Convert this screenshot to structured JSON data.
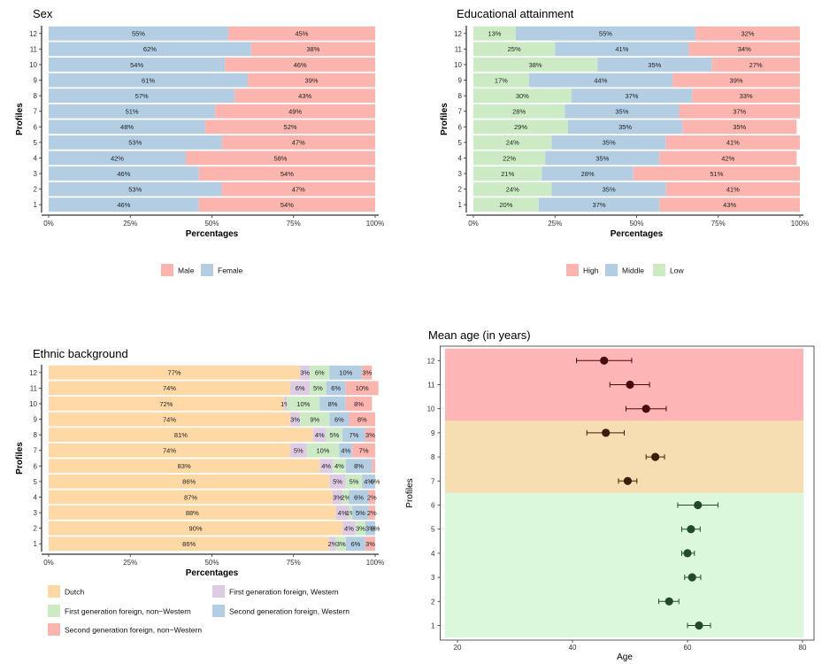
{
  "chart_data": [
    {
      "type": "bar",
      "title": "Sex",
      "xlabel": "Percentages",
      "ylabel": "Profiles",
      "orientation": "horizontal",
      "stacked": true,
      "categories": [
        "1",
        "2",
        "3",
        "4",
        "5",
        "6",
        "7",
        "8",
        "9",
        "10",
        "11",
        "12"
      ],
      "x_ticks": [
        "0%",
        "25%",
        "50%",
        "75%",
        "100%"
      ],
      "xlim": [
        0,
        100
      ],
      "legend_position": "bottom",
      "series": [
        {
          "name": "Female",
          "color": "#b3cde3",
          "values": [
            46,
            53,
            46,
            42,
            53,
            48,
            51,
            57,
            61,
            54,
            62,
            55
          ]
        },
        {
          "name": "Male",
          "color": "#fbb4ae",
          "values": [
            54,
            47,
            54,
            58,
            47,
            52,
            49,
            43,
            39,
            46,
            38,
            45
          ]
        }
      ],
      "legend": [
        {
          "name": "Male",
          "color": "#fbb4ae"
        },
        {
          "name": "Female",
          "color": "#b3cde3"
        }
      ]
    },
    {
      "type": "bar",
      "title": "Educational attainment",
      "xlabel": "Percentages",
      "ylabel": "Profiles",
      "orientation": "horizontal",
      "stacked": true,
      "categories": [
        "1",
        "2",
        "3",
        "4",
        "5",
        "6",
        "7",
        "8",
        "9",
        "10",
        "11",
        "12"
      ],
      "x_ticks": [
        "0%",
        "25%",
        "50%",
        "75%",
        "100%"
      ],
      "xlim": [
        0,
        100
      ],
      "legend_position": "bottom",
      "series": [
        {
          "name": "Low",
          "color": "#ccebc5",
          "values": [
            20,
            24,
            21,
            22,
            24,
            29,
            28,
            30,
            17,
            38,
            25,
            13
          ]
        },
        {
          "name": "Middle",
          "color": "#b3cde3",
          "values": [
            37,
            35,
            28,
            35,
            35,
            35,
            35,
            37,
            44,
            35,
            41,
            55
          ]
        },
        {
          "name": "High",
          "color": "#fbb4ae",
          "values": [
            43,
            41,
            51,
            42,
            41,
            35,
            37,
            33,
            39,
            27,
            34,
            32
          ]
        }
      ],
      "legend": [
        {
          "name": "High",
          "color": "#fbb4ae"
        },
        {
          "name": "Middle",
          "color": "#b3cde3"
        },
        {
          "name": "Low",
          "color": "#ccebc5"
        }
      ]
    },
    {
      "type": "bar",
      "title": "Ethnic background",
      "xlabel": "Percentages",
      "ylabel": "Profiles",
      "orientation": "horizontal",
      "stacked": true,
      "categories": [
        "1",
        "2",
        "3",
        "4",
        "5",
        "6",
        "7",
        "8",
        "9",
        "10",
        "11",
        "12"
      ],
      "x_ticks": [
        "0%",
        "25%",
        "50%",
        "75%",
        "100%"
      ],
      "xlim": [
        0,
        100
      ],
      "legend_position": "bottom",
      "series": [
        {
          "name": "Dutch",
          "color": "#fed9a6",
          "values": [
            86,
            90,
            88,
            87,
            86,
            83,
            74,
            81,
            74,
            72,
            74,
            77
          ]
        },
        {
          "name": "First generation foreign, Western",
          "color": "#decbe4",
          "values": [
            2,
            4,
            4,
            3,
            5,
            4,
            5,
            4,
            3,
            1,
            6,
            3
          ]
        },
        {
          "name": "First generation foreign, non−Western",
          "color": "#ccebc5",
          "values": [
            3,
            3,
            1,
            2,
            5,
            4,
            10,
            5,
            9,
            10,
            5,
            6
          ]
        },
        {
          "name": "Second generation foreign, Western",
          "color": "#b3cde3",
          "values": [
            6,
            3,
            5,
            6,
            4,
            8,
            4,
            7,
            6,
            8,
            6,
            10
          ]
        },
        {
          "name": "Second generation foreign, non−Western",
          "color": "#fbb4ae",
          "values": [
            3,
            0,
            2,
            2,
            0,
            1,
            7,
            3,
            8,
            8,
            10,
            3
          ]
        }
      ],
      "labels": [
        [
          "86%",
          "2%",
          "3%",
          "6%",
          "3%"
        ],
        [
          "90%",
          "4%",
          "3%",
          "3%",
          "0%"
        ],
        [
          "88%",
          "4%",
          "1%",
          "5%",
          "2%"
        ],
        [
          "87%",
          "3%",
          "2%",
          "6%",
          "2%"
        ],
        [
          "86%",
          "5%",
          "5%",
          "4%",
          "0%"
        ],
        [
          "83%",
          "4%",
          "4%",
          "8%",
          ""
        ],
        [
          "74%",
          "5%",
          "10%",
          "4%",
          "7%"
        ],
        [
          "81%",
          "4%",
          "5%",
          "7%",
          "3%"
        ],
        [
          "74%",
          "3%",
          "9%",
          "6%",
          "8%"
        ],
        [
          "72%",
          "1%",
          "10%",
          "8%",
          "8%"
        ],
        [
          "74%",
          "6%",
          "5%",
          "6%",
          "10%"
        ],
        [
          "77%",
          "3%",
          "6%",
          "10%",
          "3%"
        ]
      ],
      "legend": [
        {
          "name": "Dutch",
          "color": "#fed9a6"
        },
        {
          "name": "First generation foreign, Western",
          "color": "#decbe4"
        },
        {
          "name": "First generation foreign, non−Western",
          "color": "#ccebc5"
        },
        {
          "name": "Second generation foreign, Western",
          "color": "#b3cde3"
        },
        {
          "name": "Second generation foreign, non−Western",
          "color": "#fbb4ae"
        }
      ]
    },
    {
      "type": "scatter",
      "title": "Mean age (in years)",
      "xlabel": "Age",
      "ylabel": "Profiles",
      "xlim": [
        15,
        82
      ],
      "x_ticks": [
        20,
        40,
        60,
        80
      ],
      "categories": [
        "1",
        "2",
        "3",
        "4",
        "5",
        "6",
        "7",
        "8",
        "9",
        "10",
        "11",
        "12"
      ],
      "grid": false,
      "bands": [
        {
          "from": 1,
          "to": 6,
          "color": "#dbf7dc"
        },
        {
          "from": 7,
          "to": 9,
          "color": "#f6deb2"
        },
        {
          "from": 10,
          "to": 12,
          "color": "#fdb5b5"
        }
      ],
      "points": [
        {
          "profile": 1,
          "mean": 62.0,
          "low": 60.0,
          "high": 64.0,
          "color": "#224a2a"
        },
        {
          "profile": 2,
          "mean": 56.8,
          "low": 55.0,
          "high": 58.5,
          "color": "#224a2a"
        },
        {
          "profile": 3,
          "mean": 60.8,
          "low": 59.5,
          "high": 62.3,
          "color": "#224a2a"
        },
        {
          "profile": 4,
          "mean": 60.0,
          "low": 59.0,
          "high": 61.2,
          "color": "#224a2a"
        },
        {
          "profile": 5,
          "mean": 60.6,
          "low": 59.0,
          "high": 62.2,
          "color": "#224a2a"
        },
        {
          "profile": 6,
          "mean": 61.8,
          "low": 58.3,
          "high": 65.3,
          "color": "#224a2a"
        },
        {
          "profile": 7,
          "mean": 49.6,
          "low": 48.0,
          "high": 51.2,
          "color": "#3d1d0a"
        },
        {
          "profile": 8,
          "mean": 54.4,
          "low": 52.8,
          "high": 56.0,
          "color": "#3d1d0a"
        },
        {
          "profile": 9,
          "mean": 45.8,
          "low": 42.5,
          "high": 49.0,
          "color": "#3d1d0a"
        },
        {
          "profile": 10,
          "mean": 52.8,
          "low": 49.3,
          "high": 56.3,
          "color": "#4a0a0a"
        },
        {
          "profile": 11,
          "mean": 50.0,
          "low": 46.5,
          "high": 53.4,
          "color": "#4a0a0a"
        },
        {
          "profile": 12,
          "mean": 45.5,
          "low": 40.7,
          "high": 50.3,
          "color": "#4a0a0a"
        }
      ]
    }
  ]
}
